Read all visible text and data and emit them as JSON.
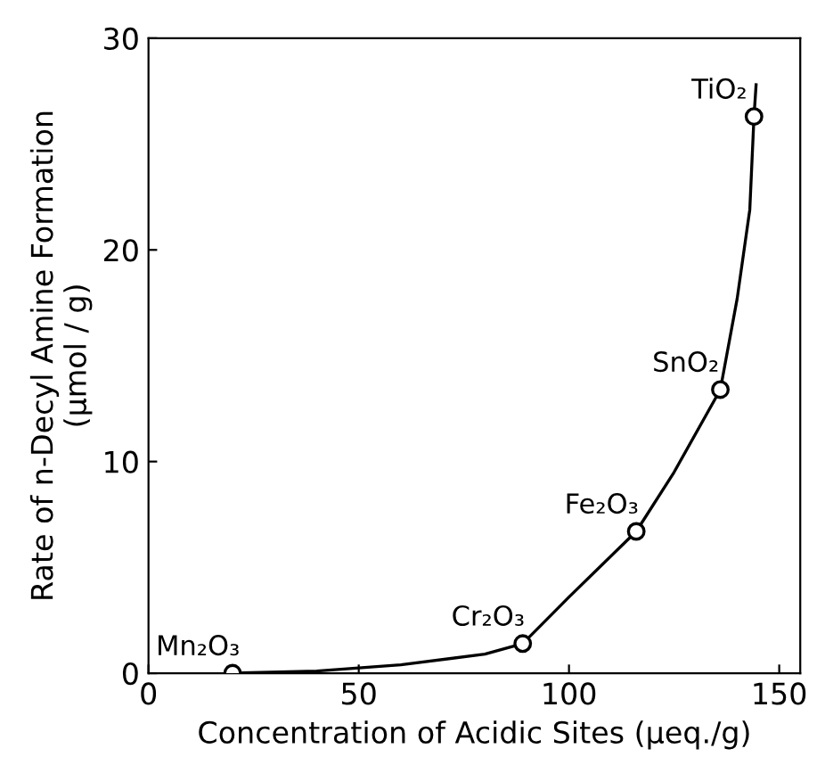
{
  "chart_data": {
    "type": "scatter",
    "xlabel": "Concentration of Acidic Sites (μeq./g)",
    "ylabel": "Rate of n-Decyl Amine Formation\n(μmol / g)",
    "xlim": [
      0,
      155
    ],
    "ylim": [
      0,
      30
    ],
    "xticks": [
      0,
      50,
      100,
      150
    ],
    "yticks": [
      0,
      10,
      20,
      30
    ],
    "grid": false,
    "legend": false,
    "series": [
      {
        "type": "line",
        "color": "#000000",
        "marker": "none",
        "line_style": "solid",
        "x": [
          20,
          40,
          60,
          80,
          89,
          100,
          116,
          125,
          136,
          140,
          143,
          144,
          144.5
        ],
        "values": [
          0,
          0.1,
          0.4,
          0.9,
          1.4,
          3.6,
          6.7,
          9.5,
          13.4,
          17.7,
          21.9,
          26.3,
          27.8
        ]
      },
      {
        "color": "#000000",
        "marker": "circle",
        "x": [
          20,
          89,
          116,
          136,
          144
        ],
        "values": [
          0,
          1.4,
          6.7,
          13.4,
          26.3
        ]
      }
    ],
    "annotations": [
      {
        "text": "Mn₂O₃",
        "x": 20,
        "y": 0
      },
      {
        "text": "Cr₂O₃",
        "x": 89,
        "y": 1.4
      },
      {
        "text": "Fe₂O₃",
        "x": 116,
        "y": 6.7
      },
      {
        "text": "SnO₂",
        "x": 136,
        "y": 13.4
      },
      {
        "text": "TiO₂",
        "x": 144,
        "y": 26.3
      }
    ]
  }
}
